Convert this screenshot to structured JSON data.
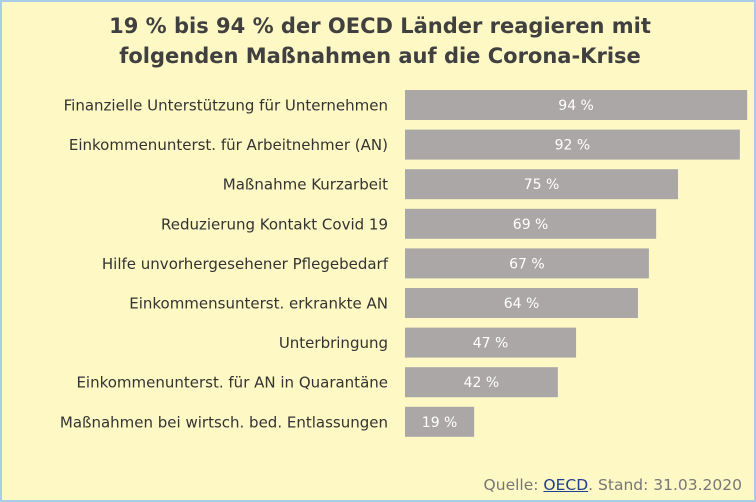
{
  "chart_data": {
    "type": "bar",
    "orientation": "horizontal",
    "title": [
      "19 % bis 94 % der OECD Länder reagieren mit",
      "folgenden Maßnahmen auf die Corona-Krise"
    ],
    "categories": [
      "Finanzielle Unterstützung für Unternehmen",
      "Einkommenunterst. für Arbeitnehmer (AN)",
      "Maßnahme Kurzarbeit",
      "Reduzierung Kontakt Covid 19",
      "Hilfe unvorhergesehener Pflegebedarf",
      "Einkommensunterst. erkrankte AN",
      "Unterbringung",
      "Einkommenunterst. für AN in Quarantäne",
      "Maßnahmen bei wirtsch. bed. Entlassungen"
    ],
    "values": [
      94,
      92,
      75,
      69,
      67,
      64,
      47,
      42,
      19
    ],
    "value_labels": [
      "94 %",
      "92 %",
      "75 %",
      "69 %",
      "67 %",
      "64 %",
      "47 %",
      "42 %",
      "19 %"
    ],
    "color": "#aba7a7",
    "source": {
      "prefix": "Quelle: ",
      "link": "OECD",
      "suffix": ". Stand: 31.03.2020"
    }
  }
}
